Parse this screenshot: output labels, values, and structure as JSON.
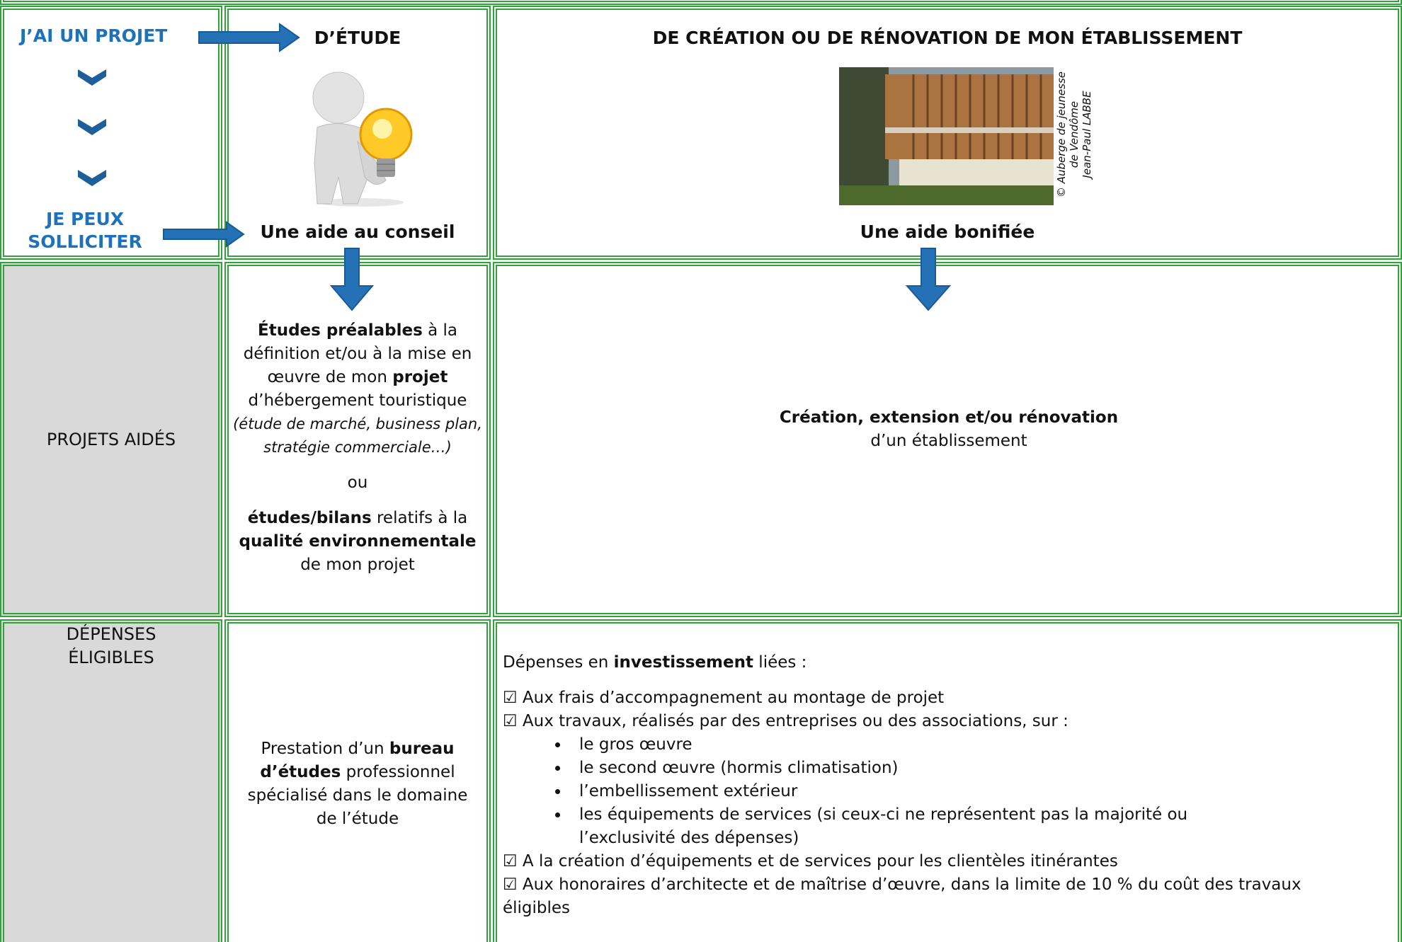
{
  "row1": {
    "label_top": "J’AI UN PROJET",
    "label_bottom": "JE PEUX SOLLICITER",
    "study_heading": "D’ÉTUDE",
    "study_caption": "Une aide au conseil",
    "works_heading": "DE CRÉATION OU DE RÉNOVATION DE MON ÉTABLISSEMENT",
    "photo_credit": [
      "© Auberge de jeunesse",
      "de Vendôme",
      "Jean-Paul LABBE"
    ],
    "works_caption": "Une aide bonifiée"
  },
  "row2": {
    "label": "PROJETS AIDÉS",
    "study": [
      [
        {
          "b": "Études préalables"
        },
        {
          "t": " à la définition et/ou à la mise en œuvre de mon "
        },
        {
          "b": "projet"
        },
        {
          "t": " d’hébergement touristique "
        },
        {
          "i": "(étude de marché, business plan, stratégie commerciale…)"
        }
      ],
      [
        {
          "t": "ou"
        }
      ],
      [
        {
          "b": "études/bilans"
        },
        {
          "t": " relatifs à la "
        },
        {
          "b": "qualité environnementale"
        },
        {
          "t": " de mon projet"
        }
      ]
    ],
    "works": [
      {
        "b": "Création, extension et/ou rénovation"
      },
      {
        "t": " d’un établissement"
      }
    ]
  },
  "row3": {
    "label": "DÉPENSES ÉLIGIBLES",
    "study": [
      {
        "t": "Prestation d’un "
      },
      {
        "b": "bureau d’études"
      },
      {
        "t": " professionnel spécialisé dans le domaine de l’étude"
      }
    ],
    "works": {
      "intro": [
        {
          "t": "Dépenses en "
        },
        {
          "b": "investissement"
        },
        {
          "t": " liées :"
        }
      ],
      "items": [
        {
          "text": "☑ Aux frais d’accompagnement au montage de projet"
        },
        {
          "text": "☑ Aux travaux, réalisés par des entreprises ou des associations, sur :",
          "bullets": [
            "le gros œuvre",
            "le second œuvre (hormis climatisation)",
            "l’embellissement extérieur",
            "les équipements de services (si ceux-ci ne représentent pas la majorité ou l’exclusivité des dépenses)"
          ]
        },
        {
          "text": "☑ A la création d’équipements et de services pour les clientèles itinérantes"
        },
        {
          "text": "☑ Aux honoraires d’architecte et de maîtrise d’œuvre, dans la limite de 10 % du coût des travaux éligibles"
        }
      ]
    }
  }
}
